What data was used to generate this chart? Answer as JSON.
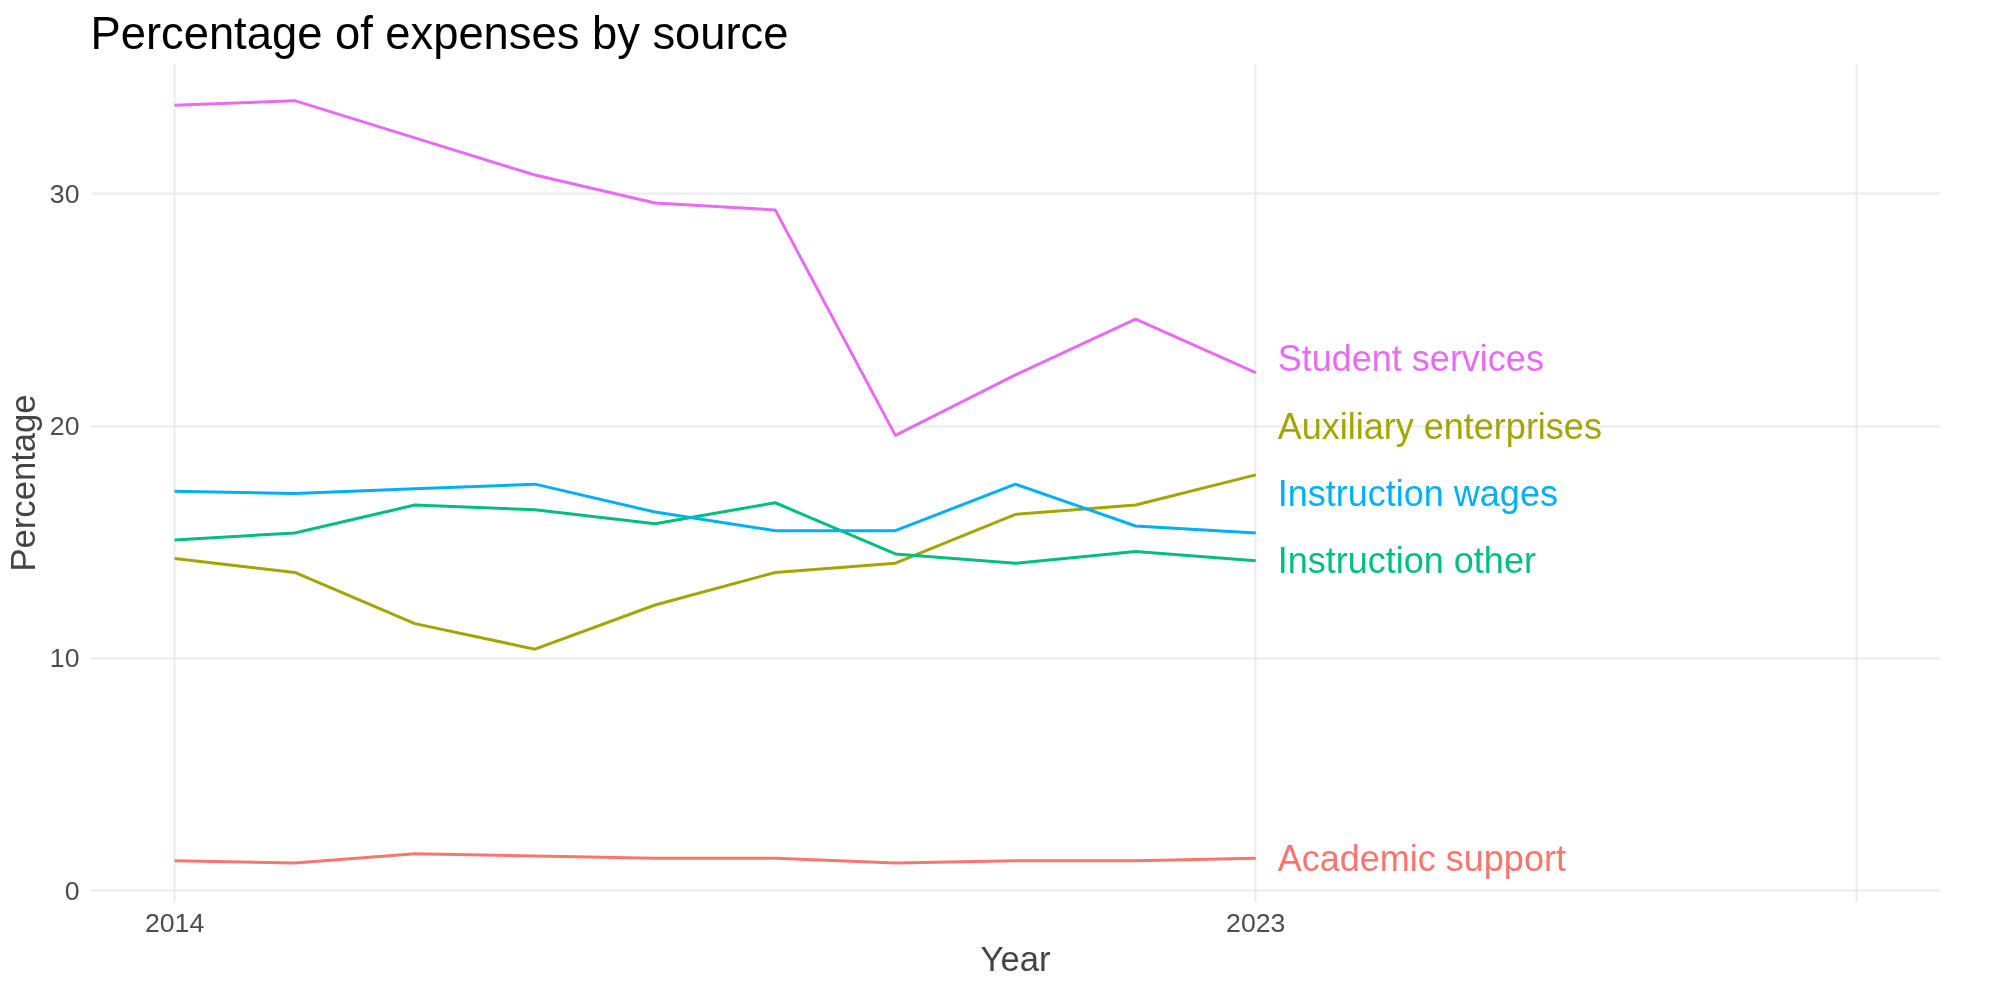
{
  "chart_data": {
    "type": "line",
    "title": "Percentage of expenses by source",
    "xlabel": "Year",
    "ylabel": "Percentage",
    "x": [
      2014,
      2015,
      2016,
      2017,
      2018,
      2019,
      2020,
      2021,
      2022,
      2023
    ],
    "xlim": [
      2013.3,
      2028.7
    ],
    "xticks": [
      2014,
      2023,
      {
        "value": 2028,
        "label": null
      }
    ],
    "ylim": [
      -0.5,
      35.6
    ],
    "yticks": [
      0,
      10,
      20,
      30
    ],
    "grid": true,
    "series": [
      {
        "name": "Academic support",
        "color": "#f8766d",
        "values": [
          1.3,
          1.2,
          1.6,
          1.5,
          1.4,
          1.4,
          1.2,
          1.3,
          1.3,
          1.4
        ]
      },
      {
        "name": "Auxiliary enterprises",
        "color": "#a3a500",
        "values": [
          14.3,
          13.7,
          11.5,
          10.4,
          12.3,
          13.7,
          14.1,
          16.2,
          16.6,
          17.9
        ]
      },
      {
        "name": "Instruction other",
        "color": "#00bf7d",
        "values": [
          15.1,
          15.4,
          16.6,
          16.4,
          15.8,
          16.7,
          14.5,
          14.1,
          14.6,
          14.2
        ]
      },
      {
        "name": "Instruction wages",
        "color": "#00b0f6",
        "values": [
          17.2,
          17.1,
          17.3,
          17.5,
          16.3,
          15.5,
          15.5,
          17.5,
          15.7,
          15.4
        ]
      },
      {
        "name": "Student services",
        "color": "#e76bf3",
        "values": [
          33.8,
          34.0,
          32.4,
          30.8,
          29.6,
          29.3,
          19.6,
          22.2,
          24.6,
          22.3
        ]
      }
    ]
  }
}
